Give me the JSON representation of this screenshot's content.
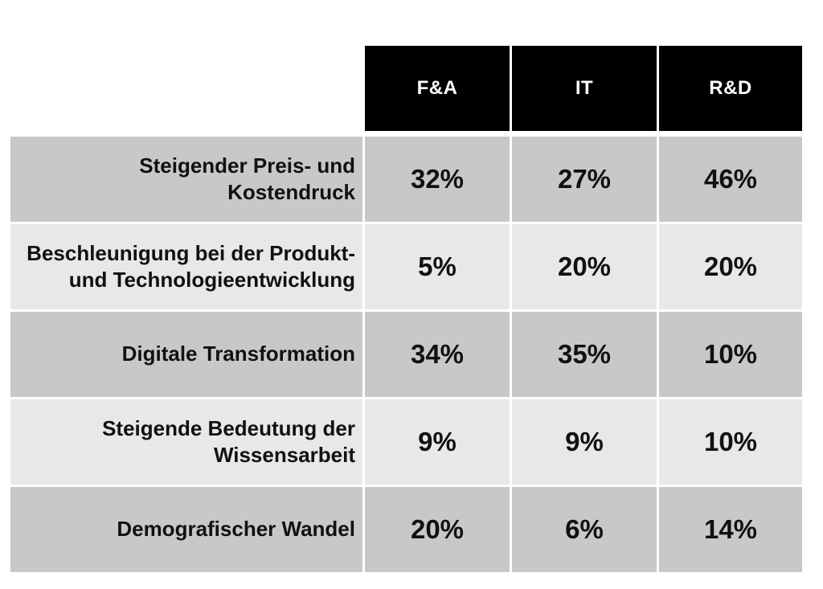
{
  "table": {
    "columns": [
      "F&A",
      "IT",
      "R&D"
    ],
    "rows": [
      {
        "label": "Steigender Preis- und Kostendruck",
        "values": [
          "32%",
          "27%",
          "46%"
        ]
      },
      {
        "label": "Beschleunigung bei der Produkt- und Technologieentwicklung",
        "values": [
          "5%",
          "20%",
          "20%"
        ]
      },
      {
        "label": "Digitale Transformation",
        "values": [
          "34%",
          "35%",
          "10%"
        ]
      },
      {
        "label": "Steigende Bedeutung der Wissensarbeit",
        "values": [
          "9%",
          "9%",
          "10%"
        ]
      },
      {
        "label": "Demografischer Wandel",
        "values": [
          "20%",
          "6%",
          "14%"
        ]
      }
    ],
    "colors": {
      "page_bg": "#ffffff",
      "header_bg": "#000000",
      "header_text": "#ffffff",
      "row_dark": "#c8c8c8",
      "row_light": "#e8e8e8",
      "text": "#111111"
    }
  },
  "chart_data": {
    "type": "table",
    "title": "",
    "categories": [
      "Steigender Preis- und Kostendruck",
      "Beschleunigung bei der Produkt- und Technologieentwicklung",
      "Digitale Transformation",
      "Steigende Bedeutung der Wissensarbeit",
      "Demografischer Wandel"
    ],
    "columns": [
      "F&A",
      "IT",
      "R&D"
    ],
    "series": [
      {
        "name": "F&A",
        "values": [
          32,
          5,
          34,
          9,
          20
        ]
      },
      {
        "name": "IT",
        "values": [
          27,
          20,
          35,
          9,
          6
        ]
      },
      {
        "name": "R&D",
        "values": [
          46,
          20,
          10,
          10,
          14
        ]
      }
    ],
    "unit": "%",
    "layout": {
      "header_style": "black-on-top",
      "row_striping": "dark-light-alternating",
      "label_alignment": "right"
    }
  }
}
